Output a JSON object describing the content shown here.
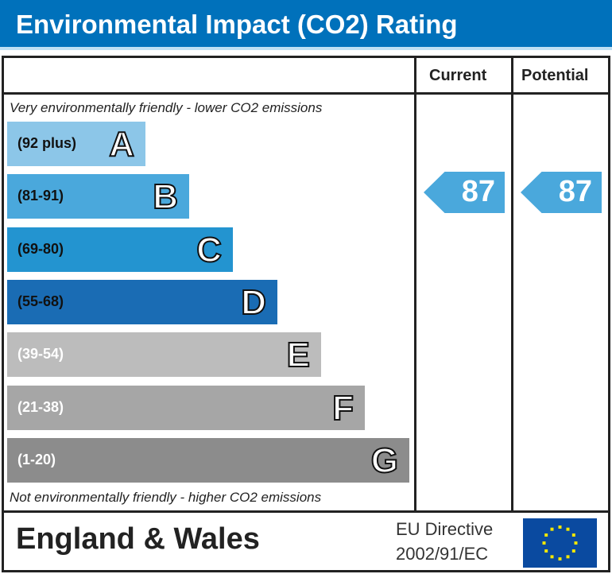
{
  "header": {
    "title": "Environmental Impact (CO2) Rating"
  },
  "columns": {
    "current": "Current",
    "potential": "Potential"
  },
  "notes": {
    "top": "Very environmentally friendly - lower CO2 emissions",
    "bottom": "Not environmentally friendly - higher CO2 emissions"
  },
  "chart_data": {
    "type": "bar",
    "title": "Environmental Impact (CO2) Rating",
    "bands": [
      {
        "letter": "A",
        "range": "(92 plus)",
        "color": "#8cc6e8"
      },
      {
        "letter": "B",
        "range": "(81-91)",
        "color": "#4aa8dc"
      },
      {
        "letter": "C",
        "range": "(69-80)",
        "color": "#2394d0"
      },
      {
        "letter": "D",
        "range": "(55-68)",
        "color": "#1a6cb4"
      },
      {
        "letter": "E",
        "range": "(39-54)",
        "color": "#bcbcbc"
      },
      {
        "letter": "F",
        "range": "(21-38)",
        "color": "#a6a6a6"
      },
      {
        "letter": "G",
        "range": "(1-20)",
        "color": "#8c8c8c"
      }
    ],
    "current": {
      "value": 87,
      "band": "B"
    },
    "potential": {
      "value": 87,
      "band": "B"
    }
  },
  "footer": {
    "region": "England & Wales",
    "directive_line1": "EU Directive",
    "directive_line2": "2002/91/EC",
    "flag": "eu-flag-icon"
  }
}
